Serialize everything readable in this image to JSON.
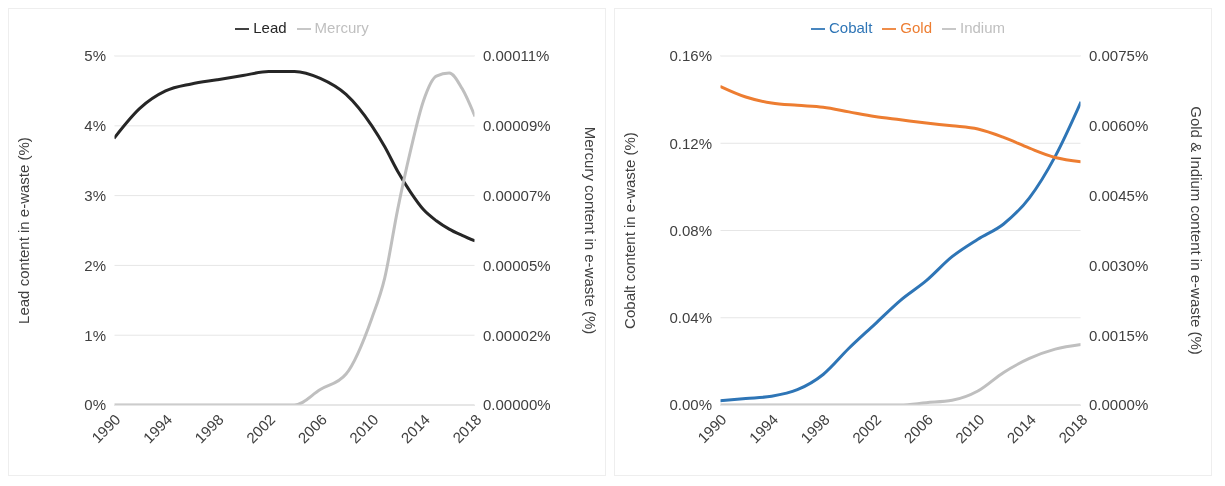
{
  "chart_data": [
    {
      "type": "line",
      "x": [
        1990,
        1992,
        1994,
        1996,
        1998,
        2000,
        2002,
        2004,
        2006,
        2008,
        2010,
        2011,
        2012,
        2013,
        2014,
        2015,
        2016,
        2017,
        2018
      ],
      "series": [
        {
          "name": "Lead",
          "color": "#262626",
          "values": [
            3.82,
            4.25,
            4.5,
            4.6,
            4.66,
            4.72,
            4.78,
            4.78,
            4.68,
            4.45,
            4.0,
            3.7,
            3.35,
            3.05,
            2.8,
            2.64,
            2.52,
            2.43,
            2.35
          ]
        },
        {
          "name": "Mercury",
          "color": "#bfbfbf",
          "axis": "y2",
          "values": [
            0,
            0,
            0,
            0,
            0,
            0,
            0,
            0,
            5e-06,
            1e-05,
            2.8e-05,
            4.1e-05,
            6.3e-05,
            8.2e-05,
            9.8e-05,
            0.000106,
            0.000107,
            0.000102,
            9.3e-05
          ]
        }
      ],
      "xlim": [
        1990,
        2018
      ],
      "xticks": [
        1990,
        1994,
        1998,
        2002,
        2006,
        2010,
        2014,
        2018
      ],
      "ylim": [
        0,
        5
      ],
      "yticks": [
        {
          "value": 0,
          "label": "0%"
        },
        {
          "value": 1,
          "label": "1%"
        },
        {
          "value": 2,
          "label": "2%"
        },
        {
          "value": 3,
          "label": "3%"
        },
        {
          "value": 4,
          "label": "4%"
        },
        {
          "value": 5,
          "label": "5%"
        }
      ],
      "y2lim": [
        0,
        0.0001125
      ],
      "y2ticks": [
        {
          "value": 0,
          "label": "0.00000%"
        },
        {
          "value": 2.25e-05,
          "label": "0.00002%"
        },
        {
          "value": 4.5e-05,
          "label": "0.00005%"
        },
        {
          "value": 6.75e-05,
          "label": "0.00007%"
        },
        {
          "value": 9e-05,
          "label": "0.00009%"
        },
        {
          "value": 0.0001125,
          "label": "0.00011%"
        }
      ],
      "ylabel": "Lead content in e-waste (%)",
      "y2label": "Mercury content in e-waste (%)",
      "grid": "y",
      "legend": "top",
      "marker": "none",
      "line_style": "solid"
    },
    {
      "type": "line",
      "x": [
        1990,
        1992,
        1994,
        1996,
        1998,
        2000,
        2002,
        2004,
        2006,
        2008,
        2010,
        2012,
        2014,
        2016,
        2018
      ],
      "series": [
        {
          "name": "Cobalt",
          "color": "#2e75b6",
          "values": [
            0.002,
            0.003,
            0.004,
            0.007,
            0.014,
            0.026,
            0.037,
            0.048,
            0.057,
            0.068,
            0.076,
            0.083,
            0.095,
            0.114,
            0.139
          ]
        },
        {
          "name": "Gold",
          "color": "#ed7d31",
          "axis": "y2",
          "values": [
            0.00685,
            0.00662,
            0.00649,
            0.00644,
            0.0064,
            0.0063,
            0.0062,
            0.00613,
            0.00606,
            0.006,
            0.00593,
            0.00575,
            0.00552,
            0.00532,
            0.00523
          ]
        },
        {
          "name": "Indium",
          "color": "#bfbfbf",
          "axis": "y2",
          "values": [
            0,
            0,
            0,
            0,
            0,
            0,
            0,
            0,
            5e-05,
            0.0001,
            0.0003,
            0.0007,
            0.001,
            0.0012,
            0.0013
          ]
        }
      ],
      "xlim": [
        1990,
        2018
      ],
      "xticks": [
        1990,
        1994,
        1998,
        2002,
        2006,
        2010,
        2014,
        2018
      ],
      "ylim": [
        0,
        0.16
      ],
      "yticks": [
        {
          "value": 0,
          "label": "0.00%"
        },
        {
          "value": 0.04,
          "label": "0.04%"
        },
        {
          "value": 0.08,
          "label": "0.08%"
        },
        {
          "value": 0.12,
          "label": "0.12%"
        },
        {
          "value": 0.16,
          "label": "0.16%"
        }
      ],
      "y2lim": [
        0,
        0.0075
      ],
      "y2ticks": [
        {
          "value": 0,
          "label": "0.0000%"
        },
        {
          "value": 0.0015,
          "label": "0.0015%"
        },
        {
          "value": 0.003,
          "label": "0.0030%"
        },
        {
          "value": 0.0045,
          "label": "0.0045%"
        },
        {
          "value": 0.006,
          "label": "0.0060%"
        },
        {
          "value": 0.0075,
          "label": "0.0075%"
        }
      ],
      "ylabel": "Cobalt content in e-waste (%)",
      "y2label": "Gold & Indium content in e-waste (%)",
      "grid": "y",
      "legend": "top",
      "marker": "none",
      "line_style": "solid"
    }
  ]
}
